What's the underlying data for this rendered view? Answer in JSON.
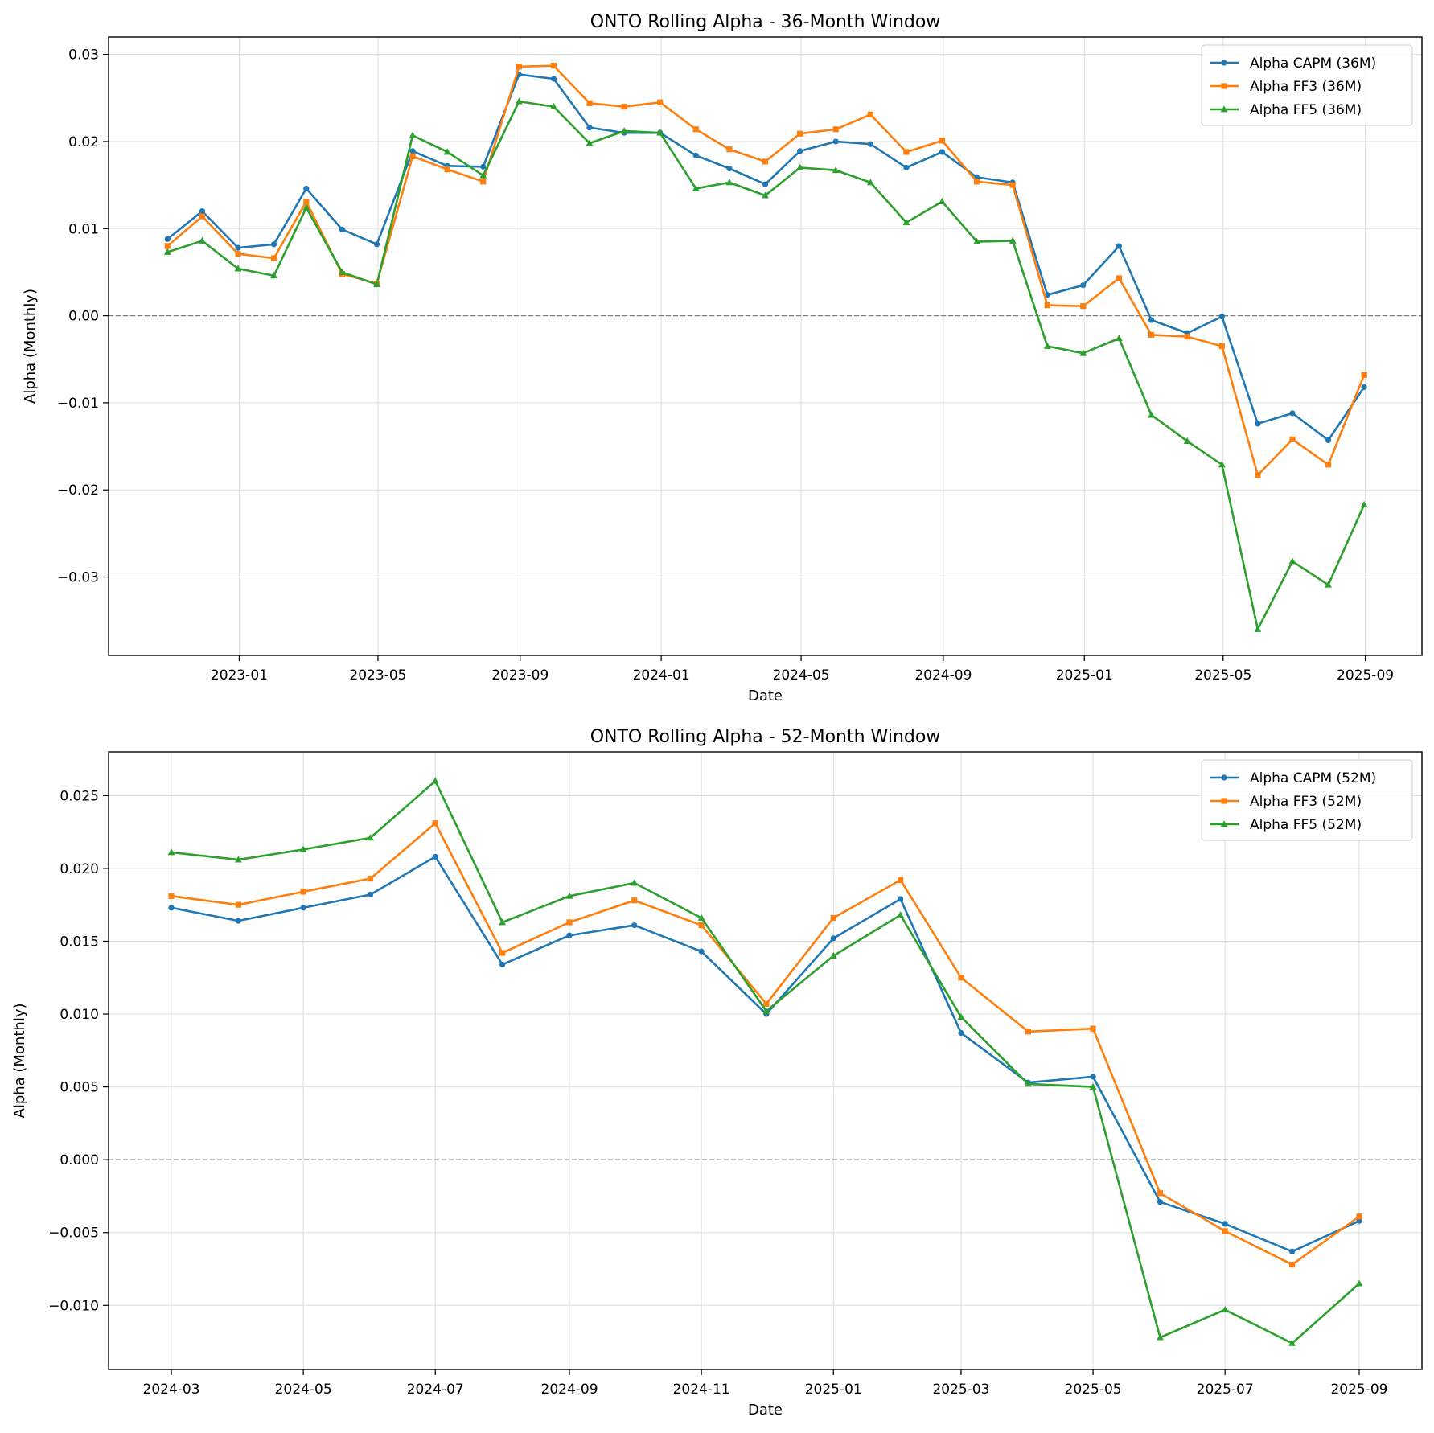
{
  "colors": {
    "capm": "#1f77b4",
    "ff3": "#ff7f0e",
    "ff5": "#2ca02c",
    "grid": "#dddddd",
    "zero_line": "#808080"
  },
  "chart_data": [
    {
      "type": "line",
      "title": "ONTO Rolling Alpha - 36-Month Window",
      "xlabel": "Date",
      "ylabel": "Alpha (Monthly)",
      "ylim": [
        -0.039,
        0.032
      ],
      "xlim": [
        "2022-09-10",
        "2025-10-20"
      ],
      "grid": true,
      "zero_line": true,
      "legend": "top-right",
      "x_ticks": [
        "2023-01",
        "2023-05",
        "2023-09",
        "2024-01",
        "2024-05",
        "2024-09",
        "2025-01",
        "2025-05",
        "2025-09"
      ],
      "y_ticks": [
        0.03,
        0.02,
        0.01,
        0.0,
        -0.01,
        -0.02,
        -0.03
      ],
      "y_tick_labels": [
        "0.03",
        "0.02",
        "0.01",
        "0.00",
        "−0.01",
        "−0.02",
        "−0.03"
      ],
      "x": [
        "2022-10-31",
        "2022-11-30",
        "2022-12-31",
        "2023-01-31",
        "2023-02-28",
        "2023-03-31",
        "2023-04-30",
        "2023-05-31",
        "2023-06-30",
        "2023-07-31",
        "2023-08-31",
        "2023-09-30",
        "2023-10-31",
        "2023-11-30",
        "2023-12-31",
        "2024-01-31",
        "2024-02-29",
        "2024-03-31",
        "2024-04-30",
        "2024-05-31",
        "2024-06-30",
        "2024-07-31",
        "2024-08-31",
        "2024-09-30",
        "2024-10-31",
        "2024-11-30",
        "2024-12-31",
        "2025-01-31",
        "2025-02-28",
        "2025-03-31",
        "2025-04-30",
        "2025-05-31",
        "2025-06-30",
        "2025-07-31",
        "2025-08-31"
      ],
      "series": [
        {
          "name": "Alpha CAPM (36M)",
          "color_key": "capm",
          "marker": "circle",
          "values": [
            0.0088,
            0.012,
            0.0078,
            0.0082,
            0.0146,
            0.0099,
            0.0082,
            0.0189,
            0.0172,
            0.0171,
            0.0277,
            0.0272,
            0.0216,
            0.021,
            0.021,
            0.0184,
            0.0169,
            0.0151,
            0.0189,
            0.02,
            0.0197,
            0.017,
            0.0188,
            0.0159,
            0.0153,
            0.0024,
            0.0035,
            0.008,
            -0.0005,
            -0.002,
            -0.0001,
            -0.0124,
            -0.0112,
            -0.0143,
            -0.0082
          ]
        },
        {
          "name": "Alpha FF3 (36M)",
          "color_key": "ff3",
          "marker": "square",
          "values": [
            0.008,
            0.0114,
            0.0071,
            0.0066,
            0.0131,
            0.0048,
            0.0037,
            0.0183,
            0.0168,
            0.0154,
            0.0286,
            0.0287,
            0.0244,
            0.024,
            0.0245,
            0.0214,
            0.0191,
            0.0177,
            0.0209,
            0.0214,
            0.0231,
            0.0188,
            0.0201,
            0.0154,
            0.015,
            0.0012,
            0.0011,
            0.0043,
            -0.0022,
            -0.0024,
            -0.0035,
            -0.0183,
            -0.0142,
            -0.0171,
            -0.0068
          ]
        },
        {
          "name": "Alpha FF5 (36M)",
          "color_key": "ff5",
          "marker": "triangle",
          "values": [
            0.0073,
            0.0086,
            0.0054,
            0.0046,
            0.0124,
            0.005,
            0.0036,
            0.0207,
            0.0188,
            0.0161,
            0.0246,
            0.024,
            0.0198,
            0.0212,
            0.021,
            0.0146,
            0.0153,
            0.0138,
            0.017,
            0.0167,
            0.0153,
            0.0107,
            0.0131,
            0.0085,
            0.0086,
            -0.0035,
            -0.0043,
            -0.0026,
            -0.0114,
            -0.0144,
            -0.0171,
            -0.036,
            -0.0282,
            -0.0309,
            -0.0217
          ]
        }
      ]
    },
    {
      "type": "line",
      "title": "ONTO Rolling Alpha - 52-Month Window",
      "xlabel": "Date",
      "ylabel": "Alpha (Monthly)",
      "ylim": [
        -0.0144,
        0.028
      ],
      "xlim": [
        "2024-02-01",
        "2025-09-30"
      ],
      "grid": true,
      "zero_line": true,
      "legend": "top-right",
      "x_ticks": [
        "2024-03",
        "2024-05",
        "2024-07",
        "2024-09",
        "2024-11",
        "2025-01",
        "2025-03",
        "2025-05",
        "2025-07",
        "2025-09"
      ],
      "y_ticks": [
        0.025,
        0.02,
        0.015,
        0.01,
        0.005,
        0.0,
        -0.005,
        -0.01
      ],
      "y_tick_labels": [
        "0.025",
        "0.020",
        "0.015",
        "0.010",
        "0.005",
        "0.000",
        "−0.005",
        "−0.010"
      ],
      "x": [
        "2024-03-01",
        "2024-04-01",
        "2024-05-01",
        "2024-06-01",
        "2024-07-01",
        "2024-08-01",
        "2024-09-01",
        "2024-10-01",
        "2024-11-01",
        "2024-12-01",
        "2025-01-01",
        "2025-02-01",
        "2025-03-01",
        "2025-04-01",
        "2025-05-01",
        "2025-06-01",
        "2025-07-01",
        "2025-08-01",
        "2025-09-01"
      ],
      "series": [
        {
          "name": "Alpha CAPM (52M)",
          "color_key": "capm",
          "marker": "circle",
          "values": [
            0.0173,
            0.0164,
            0.0173,
            0.0182,
            0.0208,
            0.0134,
            0.0154,
            0.0161,
            0.0143,
            0.01,
            0.0152,
            0.0179,
            0.0087,
            0.0053,
            0.0057,
            -0.0029,
            -0.0044,
            -0.0063,
            -0.0042
          ]
        },
        {
          "name": "Alpha FF3 (52M)",
          "color_key": "ff3",
          "marker": "square",
          "values": [
            0.0181,
            0.0175,
            0.0184,
            0.0193,
            0.0231,
            0.0142,
            0.0163,
            0.0178,
            0.0161,
            0.0107,
            0.0166,
            0.0192,
            0.0125,
            0.0088,
            0.009,
            -0.0023,
            -0.0049,
            -0.0072,
            -0.0039
          ]
        },
        {
          "name": "Alpha FF5 (52M)",
          "color_key": "ff5",
          "marker": "triangle",
          "values": [
            0.0211,
            0.0206,
            0.0213,
            0.0221,
            0.026,
            0.0163,
            0.0181,
            0.019,
            0.0166,
            0.0102,
            0.014,
            0.0168,
            0.0098,
            0.0052,
            0.005,
            -0.0122,
            -0.0103,
            -0.0126,
            -0.0085
          ]
        }
      ]
    }
  ]
}
